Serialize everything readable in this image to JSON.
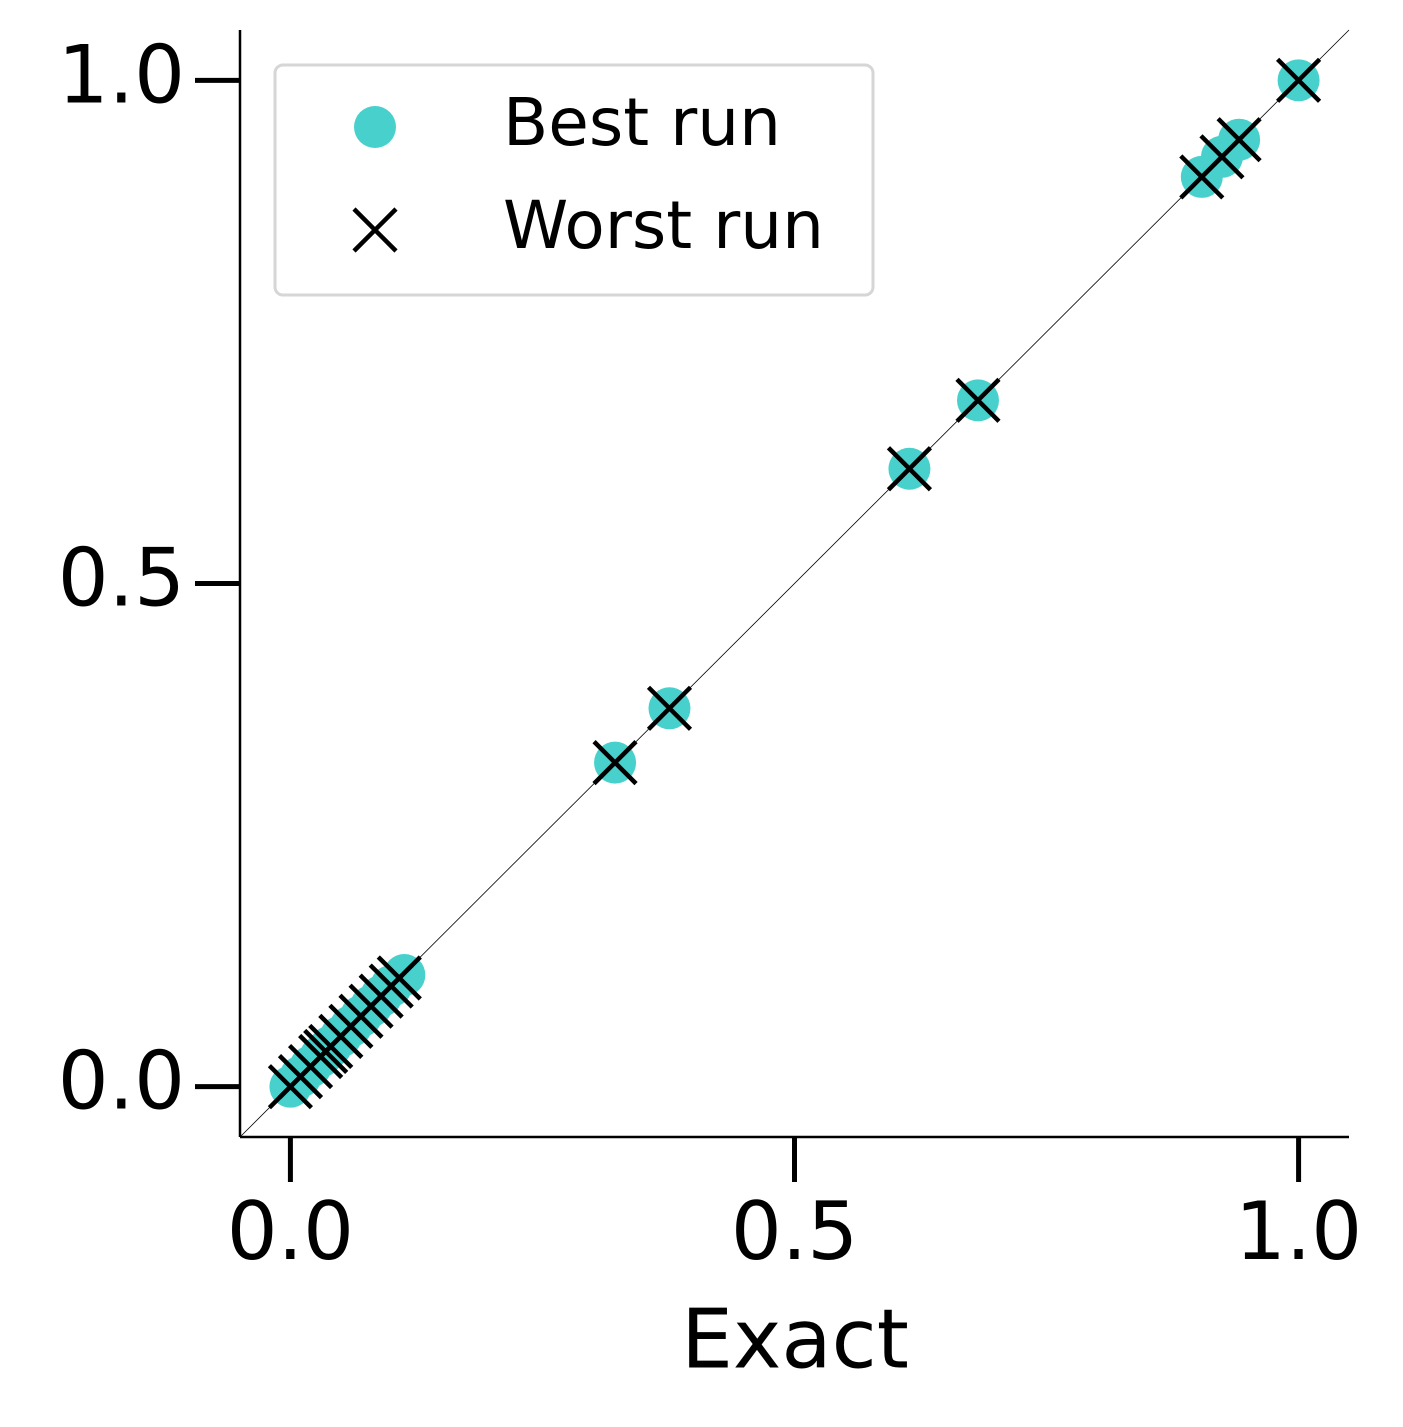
{
  "chart_data": {
    "type": "scatter",
    "xlabel": "Exact",
    "xlim": [
      -0.05,
      1.05
    ],
    "ylim": [
      -0.05,
      1.05
    ],
    "xticks": [
      {
        "value": 0,
        "label": "0.0"
      },
      0.5,
      {
        "value": 1,
        "label": "1.0"
      }
    ],
    "yticks": [
      {
        "value": 0,
        "label": "0.0"
      },
      0.5,
      {
        "value": 1,
        "label": "1.0"
      }
    ],
    "diagonal": true,
    "legend": "upper left",
    "series": [
      {
        "name": "Best run",
        "color": "#48d1cc",
        "marker": "circle",
        "x": [
          0,
          0.01,
          0.02,
          0.03,
          0.035,
          0.04,
          0.05,
          0.06,
          0.07,
          0.08,
          0.09,
          0.1,
          0.113,
          0.322,
          0.376,
          0.614,
          0.682,
          0.904,
          0.924,
          0.941,
          1.0
        ],
        "values": [
          0,
          0.01,
          0.02,
          0.03,
          0.035,
          0.04,
          0.05,
          0.06,
          0.07,
          0.08,
          0.09,
          0.1,
          0.111,
          0.322,
          0.376,
          0.614,
          0.682,
          0.904,
          0.924,
          0.941,
          1.0
        ]
      },
      {
        "name": "Worst run",
        "color": "#000000",
        "marker": "x",
        "x": [
          0,
          0.01,
          0.02,
          0.03,
          0.035,
          0.04,
          0.05,
          0.06,
          0.07,
          0.08,
          0.09,
          0.1,
          0.108,
          0.322,
          0.376,
          0.614,
          0.682,
          0.904,
          0.924,
          0.941,
          1.0
        ],
        "values": [
          0,
          0.01,
          0.02,
          0.03,
          0.035,
          0.04,
          0.05,
          0.06,
          0.07,
          0.08,
          0.09,
          0.1,
          0.108,
          0.322,
          0.376,
          0.614,
          0.682,
          0.904,
          0.924,
          0.941,
          1.0
        ]
      }
    ]
  }
}
